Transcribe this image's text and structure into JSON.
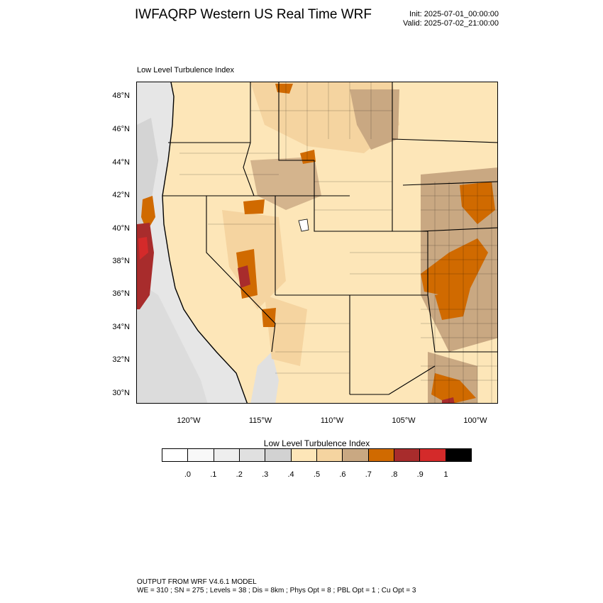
{
  "header": {
    "title": "IWFAQRP Western US Real Time WRF",
    "init": "Init: 2025-07-01_00:00:00",
    "valid": "Valid: 2025-07-02_21:00:00"
  },
  "map": {
    "subtitle": "Low Level Turbulence Index",
    "lat_labels": [
      "48°N",
      "46°N",
      "44°N",
      "42°N",
      "40°N",
      "38°N",
      "36°N",
      "34°N",
      "32°N",
      "30°N"
    ],
    "lon_labels": [
      "120°W",
      "115°W",
      "110°W",
      "105°W",
      "100°W"
    ],
    "field_colors": {
      "ocean_light": "#e6e6e6",
      "ocean_mid": "#d4d4d4",
      "level_04": "#fde6b8",
      "level_05": "#f5d4a0",
      "level_06": "#c9a882",
      "level_07": "#d06a00",
      "level_08": "#a82c2c",
      "level_09": "#d42a2a"
    }
  },
  "colorbar": {
    "title": "Low Level Turbulence Index",
    "colors": [
      "#ffffff",
      "#f8f8f8",
      "#eeeeee",
      "#e0e0e0",
      "#d2d2d2",
      "#fde6b8",
      "#f5d4a0",
      "#c9a882",
      "#d06a00",
      "#a82c2c",
      "#d42a2a",
      "#000000"
    ],
    "ticks": [
      ".0",
      ".1",
      ".2",
      ".3",
      ".4",
      ".5",
      ".6",
      ".7",
      ".8",
      ".9",
      "1"
    ]
  },
  "footer": {
    "line1": "OUTPUT FROM WRF V4.6.1 MODEL",
    "line2": "WE = 310 ; SN = 275 ; Levels = 38 ; Dis = 8km ; Phys Opt = 8 ; PBL Opt = 1 ; Cu Opt = 3"
  }
}
